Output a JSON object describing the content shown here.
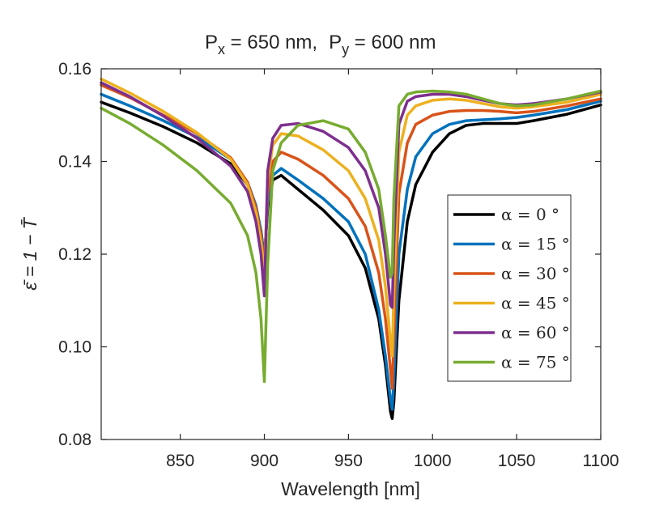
{
  "chart_data": {
    "type": "line",
    "title": {
      "px_label": "P",
      "px_sub": "x",
      "px_value": " = 650 nm,",
      "py_label": "P",
      "py_sub": "y",
      "py_value": " = 600 nm"
    },
    "xlabel": "Wavelength [nm]",
    "ylabel": "ε̄ = 1 − T̄",
    "xlim": [
      803,
      1100
    ],
    "ylim": [
      0.08,
      0.16
    ],
    "x_ticks": [
      850,
      900,
      950,
      1000,
      1050,
      1100
    ],
    "x_tick_labels": [
      "850",
      "900",
      "950",
      "1000",
      "1050",
      "1100"
    ],
    "y_ticks": [
      0.08,
      0.1,
      0.12,
      0.14,
      0.16
    ],
    "y_tick_labels": [
      "0.08",
      "0.10",
      "0.12",
      "0.14",
      "0.16"
    ],
    "grid": false,
    "legend_position": "right-middle",
    "series": [
      {
        "name": "α = 0 °",
        "color": "#000000",
        "x": [
          803,
          820,
          840,
          860,
          880,
          890,
          895,
          898,
          900,
          902,
          905,
          910,
          920,
          935,
          950,
          960,
          968,
          972,
          975,
          976,
          977,
          980,
          985,
          990,
          1000,
          1010,
          1020,
          1030,
          1040,
          1050,
          1060,
          1080,
          1100
        ],
        "y": [
          0.1528,
          0.1505,
          0.1475,
          0.144,
          0.1395,
          0.135,
          0.13,
          0.125,
          0.119,
          0.13,
          0.136,
          0.137,
          0.134,
          0.1295,
          0.124,
          0.117,
          0.106,
          0.096,
          0.086,
          0.0845,
          0.088,
          0.11,
          0.127,
          0.135,
          0.142,
          0.146,
          0.1478,
          0.1482,
          0.1482,
          0.1482,
          0.1488,
          0.1502,
          0.1522
        ]
      },
      {
        "name": "α = 15 °",
        "color": "#0072BD",
        "x": [
          803,
          820,
          840,
          860,
          880,
          890,
          895,
          898,
          900,
          902,
          905,
          910,
          920,
          935,
          950,
          960,
          968,
          972,
          975,
          976,
          977,
          980,
          985,
          990,
          1000,
          1010,
          1020,
          1030,
          1040,
          1050,
          1060,
          1080,
          1100
        ],
        "y": [
          0.1545,
          0.152,
          0.1488,
          0.1452,
          0.1405,
          0.1355,
          0.1305,
          0.125,
          0.1185,
          0.131,
          0.137,
          0.1385,
          0.136,
          0.132,
          0.127,
          0.12,
          0.108,
          0.098,
          0.0885,
          0.0865,
          0.093,
          0.12,
          0.134,
          0.141,
          0.146,
          0.148,
          0.1488,
          0.149,
          0.1492,
          0.1495,
          0.15,
          0.1512,
          0.153
        ]
      },
      {
        "name": "α = 30 °",
        "color": "#D95319",
        "x": [
          803,
          820,
          840,
          860,
          880,
          890,
          895,
          898,
          900,
          902,
          905,
          910,
          920,
          935,
          950,
          960,
          968,
          972,
          975,
          976,
          977,
          980,
          985,
          990,
          1000,
          1010,
          1020,
          1030,
          1040,
          1050,
          1060,
          1080,
          1100
        ],
        "y": [
          0.1565,
          0.1538,
          0.15,
          0.146,
          0.1408,
          0.1355,
          0.13,
          0.124,
          0.117,
          0.133,
          0.14,
          0.142,
          0.1405,
          0.137,
          0.132,
          0.126,
          0.116,
          0.106,
          0.095,
          0.091,
          0.102,
          0.133,
          0.144,
          0.148,
          0.15,
          0.1508,
          0.151,
          0.151,
          0.1508,
          0.1505,
          0.1508,
          0.152,
          0.1535
        ]
      },
      {
        "name": "α = 45 °",
        "color": "#EDB120",
        "x": [
          803,
          820,
          840,
          860,
          880,
          890,
          895,
          898,
          900,
          902,
          905,
          910,
          920,
          935,
          950,
          960,
          968,
          972,
          975,
          976,
          977,
          980,
          985,
          990,
          1000,
          1010,
          1020,
          1030,
          1040,
          1050,
          1060,
          1080,
          1100
        ],
        "y": [
          0.1578,
          0.1548,
          0.1508,
          0.1462,
          0.1405,
          0.135,
          0.129,
          0.1225,
          0.1155,
          0.136,
          0.1435,
          0.146,
          0.1455,
          0.1425,
          0.138,
          0.132,
          0.123,
          0.113,
          0.101,
          0.098,
          0.112,
          0.142,
          0.15,
          0.152,
          0.1532,
          0.1535,
          0.1532,
          0.1525,
          0.1518,
          0.1515,
          0.1518,
          0.1528,
          0.1545
        ]
      },
      {
        "name": "α = 60 °",
        "color": "#7E2F8E",
        "x": [
          803,
          820,
          840,
          860,
          880,
          890,
          895,
          898,
          900,
          902,
          905,
          910,
          920,
          935,
          950,
          960,
          968,
          972,
          975,
          976,
          977,
          980,
          985,
          990,
          1000,
          1010,
          1020,
          1030,
          1040,
          1050,
          1060,
          1080,
          1100
        ],
        "y": [
          0.157,
          0.154,
          0.1498,
          0.145,
          0.139,
          0.1335,
          0.127,
          0.12,
          0.111,
          0.138,
          0.145,
          0.1478,
          0.1482,
          0.1465,
          0.143,
          0.138,
          0.13,
          0.12,
          0.109,
          0.1085,
          0.122,
          0.148,
          0.153,
          0.154,
          0.1545,
          0.1545,
          0.154,
          0.1532,
          0.1525,
          0.1522,
          0.1525,
          0.1535,
          0.155
        ]
      },
      {
        "name": "α = 75 °",
        "color": "#77AC30",
        "x": [
          803,
          820,
          840,
          860,
          880,
          890,
          895,
          898,
          900,
          902,
          905,
          910,
          920,
          935,
          950,
          960,
          968,
          972,
          975,
          976,
          977,
          980,
          985,
          990,
          1000,
          1010,
          1020,
          1030,
          1040,
          1050,
          1060,
          1080,
          1100
        ],
        "y": [
          0.1515,
          0.1482,
          0.1435,
          0.138,
          0.131,
          0.124,
          0.116,
          0.106,
          0.0925,
          0.118,
          0.138,
          0.144,
          0.1478,
          0.1488,
          0.147,
          0.142,
          0.134,
          0.124,
          0.115,
          0.116,
          0.132,
          0.152,
          0.1545,
          0.155,
          0.1552,
          0.155,
          0.1545,
          0.1535,
          0.1525,
          0.152,
          0.1522,
          0.1535,
          0.1552
        ]
      }
    ]
  }
}
